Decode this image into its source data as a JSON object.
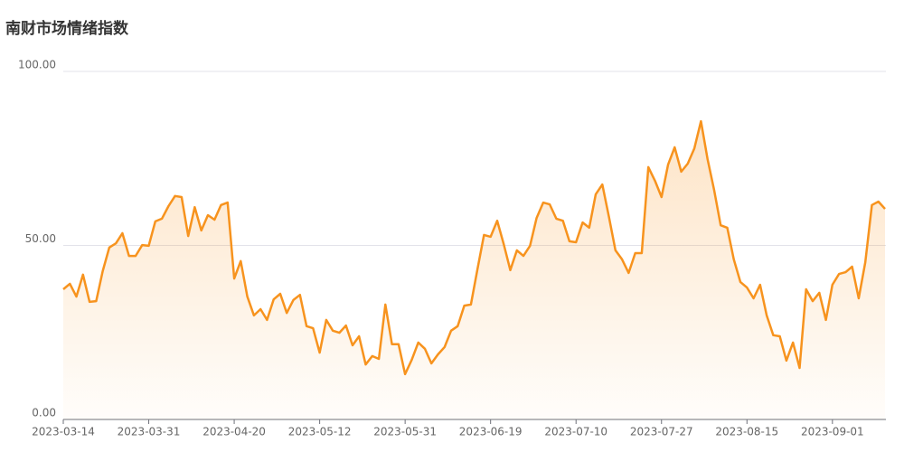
{
  "chart_data": {
    "type": "line",
    "title": "南财市场情绪指数",
    "categories": [
      "2023-03-14",
      null,
      null,
      null,
      null,
      null,
      null,
      null,
      null,
      null,
      null,
      null,
      null,
      "2023-03-31",
      null,
      null,
      null,
      null,
      null,
      null,
      null,
      null,
      null,
      null,
      null,
      null,
      "2023-04-20",
      null,
      null,
      null,
      null,
      null,
      null,
      null,
      null,
      null,
      null,
      null,
      null,
      "2023-05-12",
      null,
      null,
      null,
      null,
      null,
      null,
      null,
      null,
      null,
      null,
      null,
      null,
      "2023-05-31",
      null,
      null,
      null,
      null,
      null,
      null,
      null,
      null,
      null,
      null,
      null,
      null,
      "2023-06-19",
      null,
      null,
      null,
      null,
      null,
      null,
      null,
      null,
      null,
      null,
      null,
      null,
      "2023-07-10",
      null,
      null,
      null,
      null,
      null,
      null,
      null,
      null,
      null,
      null,
      null,
      null,
      "2023-07-27",
      null,
      null,
      null,
      null,
      null,
      null,
      null,
      null,
      null,
      null,
      null,
      null,
      "2023-08-15",
      null,
      null,
      null,
      null,
      null,
      null,
      null,
      null,
      null,
      null,
      null,
      null,
      "2023-09-01",
      null,
      null,
      null,
      null,
      null,
      null,
      null,
      null
    ],
    "values": [
      37.4,
      39,
      35.3,
      41.6,
      33.8,
      34,
      42.6,
      49.4,
      50.6,
      53.5,
      47,
      47,
      50.1,
      49.9,
      56.9,
      57.7,
      61.3,
      64.2,
      63.9,
      52.7,
      61,
      54.3,
      58.7,
      57.4,
      61.6,
      62.3,
      40.5,
      45.5,
      35.3,
      29.9,
      31.7,
      28.6,
      34.5,
      36.1,
      30.6,
      34.3,
      35.8,
      26.8,
      26.2,
      19.2,
      28.6,
      25.5,
      24.9,
      27,
      21.3,
      23.9,
      15.8,
      18.2,
      17.4,
      33,
      21.6,
      21.6,
      13,
      17.1,
      22.1,
      20.3,
      16.1,
      18.7,
      20.8,
      25.5,
      26.8,
      32.7,
      33,
      43.1,
      53,
      52.5,
      57.1,
      50.4,
      42.9,
      48.6,
      47,
      49.9,
      57.9,
      62.3,
      61.8,
      57.7,
      57.1,
      51.2,
      50.9,
      56.6,
      55.1,
      64.7,
      67.5,
      58.2,
      48.6,
      46,
      42.1,
      47.8,
      47.8,
      72.5,
      68.6,
      63.9,
      73.2,
      78.2,
      71.2,
      73.5,
      77.9,
      85.7,
      74.8,
      66,
      55.8,
      55.1,
      46,
      39.5,
      37.9,
      34.8,
      38.7,
      29.9,
      24.2,
      23.9,
      16.9,
      22.1,
      14.8,
      37.4,
      34,
      36.4,
      28.6,
      38.7,
      41.8,
      42.3,
      43.9,
      34.8,
      45.2,
      61.6,
      62.6,
      60.5
    ],
    "color": "#f7931e",
    "ylim": [
      0,
      100
    ],
    "yticks": [
      {
        "value": 0,
        "label": "0.00"
      },
      {
        "value": 50,
        "label": "50.00"
      },
      {
        "value": 100,
        "label": "100.00"
      }
    ],
    "grid": true
  }
}
